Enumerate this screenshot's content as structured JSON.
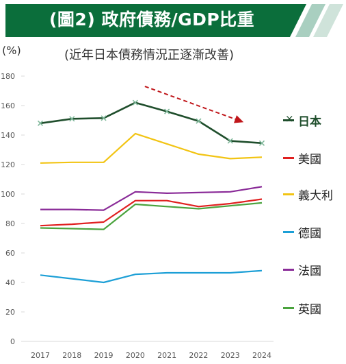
{
  "header": {
    "title": "(圖2) 政府債務/GDP比重",
    "banner_color": "#0b6e3b"
  },
  "unit_label": "(%)",
  "subtitle": "(近年日本債務情況正逐漸改善)",
  "chart_data": {
    "type": "line",
    "title": "(圖2) 政府債務/GDP比重",
    "subtitle": "(近年日本債務情況正逐漸改善)",
    "ylabel": "(%)",
    "xlabel": "",
    "x": [
      "2017",
      "2018",
      "2019",
      "2020",
      "2021",
      "2022",
      "2023",
      "2024"
    ],
    "ylim": [
      0,
      180
    ],
    "yticks": [
      "0",
      "20",
      "40",
      "60",
      "80",
      "100",
      "120",
      "140",
      "160",
      "180"
    ],
    "grid": false,
    "legend_position": "right",
    "series": [
      {
        "name": "日本",
        "color": "#1f4e2c",
        "marker": "x",
        "values": [
          148,
          151,
          151.5,
          162,
          156,
          149.5,
          136,
          134.5
        ]
      },
      {
        "name": "美國",
        "color": "#e02020",
        "values": [
          78.5,
          79.5,
          81,
          95.5,
          95.5,
          91.5,
          93.5,
          96.5
        ]
      },
      {
        "name": "義大利",
        "color": "#f2c413",
        "values": [
          121,
          121.5,
          121.5,
          141,
          134,
          127,
          124,
          125
        ]
      },
      {
        "name": "德國",
        "color": "#1c9fd6",
        "values": [
          45,
          42.5,
          40,
          45.5,
          46.5,
          46.5,
          46.5,
          48
        ]
      },
      {
        "name": "法國",
        "color": "#8a2b98",
        "values": [
          89.5,
          89.5,
          89,
          101.5,
          100.5,
          101,
          101.5,
          105
        ]
      },
      {
        "name": "英國",
        "color": "#4aa33d",
        "values": [
          77,
          76.5,
          76,
          93,
          91.5,
          90,
          92,
          94
        ]
      }
    ],
    "annotations": [
      {
        "type": "trend-arrow",
        "from": [
          "2020",
          173
        ],
        "to": [
          "2023",
          150
        ],
        "color": "#c0161a"
      }
    ]
  }
}
